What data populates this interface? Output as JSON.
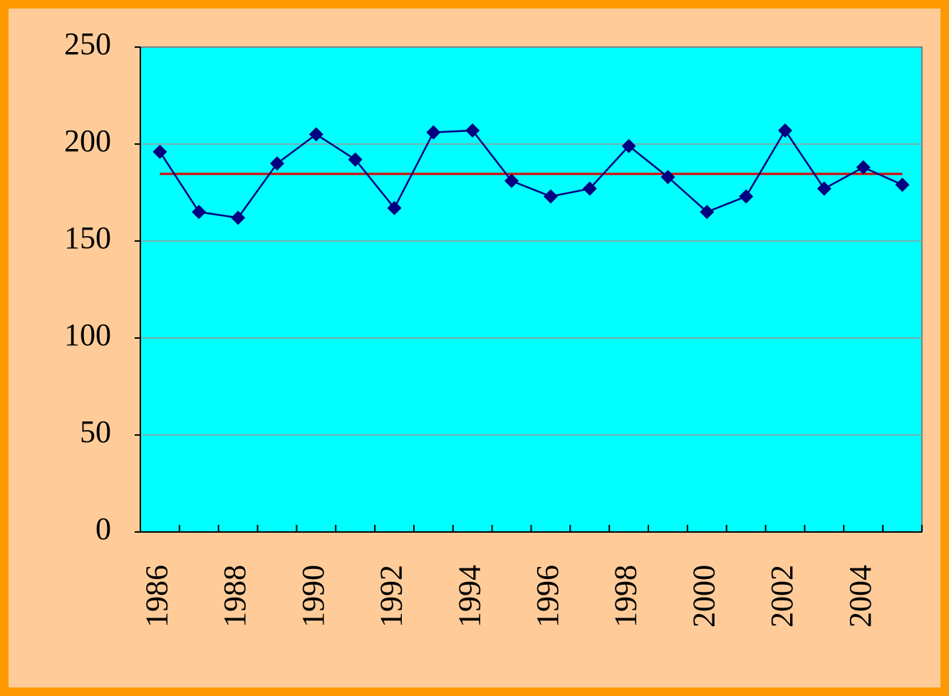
{
  "chart_data": {
    "type": "line",
    "categories": [
      "1986",
      null,
      "1988",
      null,
      "1990",
      null,
      "1992",
      null,
      "1994",
      null,
      "1996",
      null,
      "1998",
      null,
      "2000",
      null,
      "2002",
      null,
      "2004",
      null
    ],
    "series": [
      {
        "color": "#000080",
        "values": [
          196,
          165,
          162,
          190,
          205,
          192,
          167,
          206,
          207,
          181,
          173,
          177,
          199,
          183,
          165,
          173,
          207,
          177,
          188,
          179
        ]
      }
    ],
    "reference_line": {
      "value": 184.6,
      "color": "#e00000"
    },
    "ylim": [
      0,
      250
    ],
    "yticks": [
      0,
      50,
      100,
      150,
      200,
      250
    ],
    "grid": true,
    "plot_background": "#00ffff"
  }
}
